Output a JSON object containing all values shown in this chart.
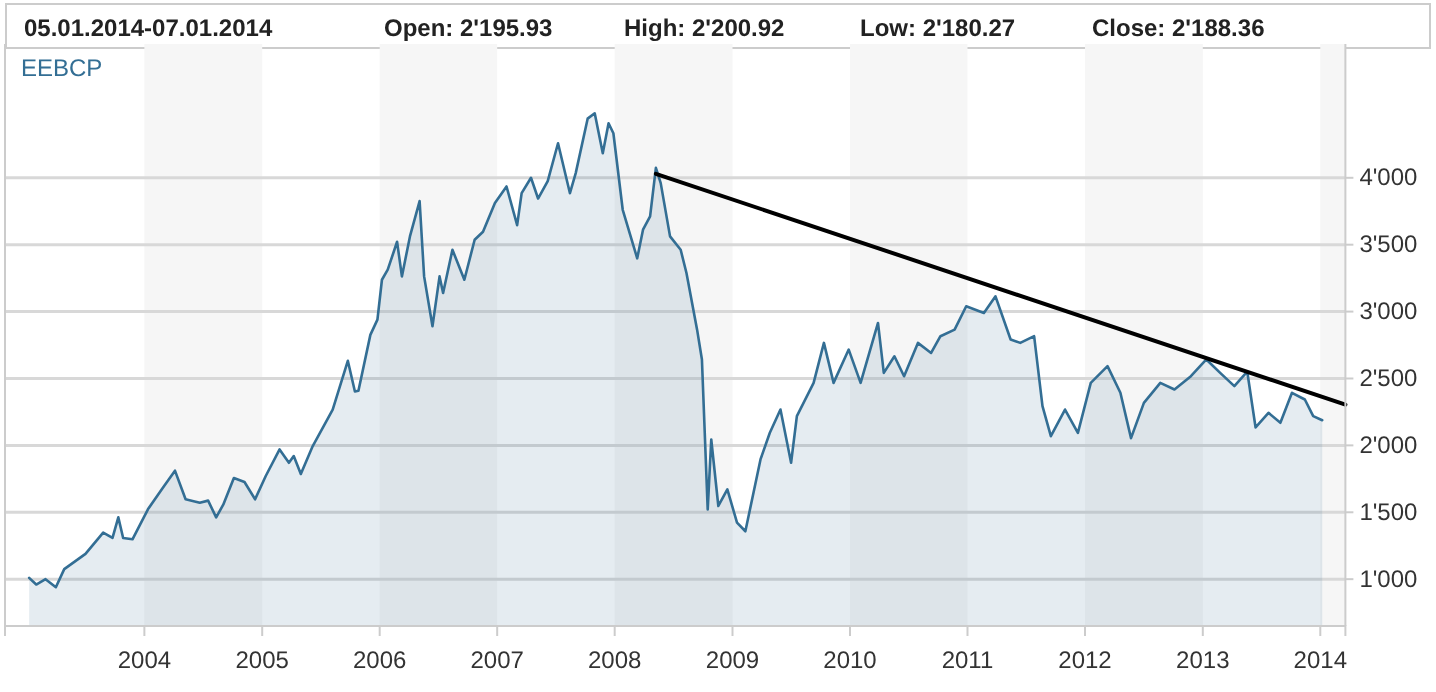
{
  "chart_data": {
    "type": "area",
    "annotations": [
      "05.01.2014-07.01.2014",
      "Open: 2'195.93",
      "High: 2'200.92",
      "Low: 2'180.27",
      "Close: 2'188.36"
    ],
    "xlim": [
      "2002-10-25",
      "2014-03-20"
    ],
    "xticks": [
      {
        "value": "2004-01-01",
        "label": "2004"
      },
      {
        "value": "2005-01-01",
        "label": "2005"
      },
      {
        "value": "2006-01-01",
        "label": "2006"
      },
      {
        "value": "2007-01-01",
        "label": "2007"
      },
      {
        "value": "2008-01-01",
        "label": "2008"
      },
      {
        "value": "2009-01-01",
        "label": "2009"
      },
      {
        "value": "2010-01-01",
        "label": "2010"
      },
      {
        "value": "2011-01-01",
        "label": "2011"
      },
      {
        "value": "2012-01-01",
        "label": "2012"
      },
      {
        "value": "2013-01-01",
        "label": "2013"
      },
      {
        "value": "2014-01-01",
        "label": "2014"
      }
    ],
    "ylim": [
      650,
      5000
    ],
    "yticks": [
      {
        "value": 1000,
        "label": "1'000"
      },
      {
        "value": 1500,
        "label": "1'500"
      },
      {
        "value": 2000,
        "label": "2'000"
      },
      {
        "value": 2500,
        "label": "2'500"
      },
      {
        "value": 3000,
        "label": "3'000"
      },
      {
        "value": 3500,
        "label": "3'500"
      },
      {
        "value": 4000,
        "label": "4'000"
      }
    ],
    "grid": "y",
    "legend": "top left",
    "bands": [
      {
        "axis": "x",
        "from": "2004-01-01",
        "to": "2005-01-01",
        "color": "#f6f6f6"
      },
      {
        "axis": "x",
        "from": "2006-01-01",
        "to": "2007-01-01",
        "color": "#f6f6f6"
      },
      {
        "axis": "x",
        "from": "2008-01-01",
        "to": "2009-01-01",
        "color": "#f6f6f6"
      },
      {
        "axis": "x",
        "from": "2010-01-01",
        "to": "2011-01-01",
        "color": "#f6f6f6"
      },
      {
        "axis": "x",
        "from": "2012-01-01",
        "to": "2013-01-01",
        "color": "#f6f6f6"
      },
      {
        "axis": "x",
        "from": "2014-01-01",
        "to": "2014-03-20",
        "color": "#f6f6f6"
      }
    ],
    "series": [
      {
        "name": "EEBCP",
        "color": "#336e94",
        "x": [
          "2003-01-08",
          "2003-01-30",
          "2003-02-28",
          "2003-04-01",
          "2003-04-27",
          "2003-07-02",
          "2003-08-26",
          "2003-09-24",
          "2003-10-12",
          "2003-10-27",
          "2003-11-25",
          "2004-01-12",
          "2004-02-28",
          "2004-04-05",
          "2004-05-08",
          "2004-06-21",
          "2004-07-17",
          "2004-08-11",
          "2004-09-02",
          "2004-10-05",
          "2004-11-07",
          "2004-12-10",
          "2005-01-12",
          "2005-02-24",
          "2005-03-25",
          "2005-04-09",
          "2005-05-01",
          "2005-06-07",
          "2005-08-08",
          "2005-09-24",
          "2005-10-16",
          "2005-10-27",
          "2005-12-03",
          "2005-12-25",
          "2006-01-08",
          "2006-01-26",
          "2006-02-24",
          "2006-03-11",
          "2006-04-05",
          "2006-05-05",
          "2006-05-19",
          "2006-06-14",
          "2006-07-06",
          "2006-07-17",
          "2006-08-15",
          "2006-09-21",
          "2006-10-23",
          "2006-11-18",
          "2006-12-25",
          "2007-01-30",
          "2007-03-04",
          "2007-03-18",
          "2007-04-16",
          "2007-05-08",
          "2007-06-07",
          "2007-07-09",
          "2007-08-15",
          "2007-09-02",
          "2007-10-09",
          "2007-10-31",
          "2007-11-25",
          "2007-12-13",
          "2007-12-28",
          "2008-01-26",
          "2008-03-11",
          "2008-03-29",
          "2008-04-20",
          "2008-05-08",
          "2008-05-23",
          "2008-06-21",
          "2008-07-24",
          "2008-08-11",
          "2008-09-13",
          "2008-09-28",
          "2008-10-16",
          "2008-10-27",
          "2008-11-18",
          "2008-12-16",
          "2009-01-15",
          "2009-02-10",
          "2009-03-29",
          "2009-04-27",
          "2009-05-30",
          "2009-07-02",
          "2009-07-20",
          "2009-09-10",
          "2009-10-12",
          "2009-11-11",
          "2009-12-28",
          "2010-02-03",
          "2010-03-29",
          "2010-04-16",
          "2010-05-19",
          "2010-06-18",
          "2010-07-31",
          "2010-09-10",
          "2010-10-09",
          "2010-11-22",
          "2010-12-28",
          "2011-02-21",
          "2011-03-29",
          "2011-05-15",
          "2011-06-14",
          "2011-07-27",
          "2011-08-22",
          "2011-09-17",
          "2011-10-31",
          "2011-12-10",
          "2012-01-19",
          "2012-03-11",
          "2012-04-20",
          "2012-05-23",
          "2012-07-02",
          "2012-08-22",
          "2012-10-05",
          "2012-11-25",
          "2013-01-12",
          "2013-02-24",
          "2013-04-09",
          "2013-05-19",
          "2013-06-14",
          "2013-07-24",
          "2013-08-30",
          "2013-10-05",
          "2013-11-14",
          "2013-12-10",
          "2014-01-07"
        ],
        "values": [
          1010,
          960,
          1000,
          940,
          1075,
          1189,
          1348,
          1308,
          1462,
          1308,
          1298,
          1522,
          1686,
          1811,
          1597,
          1572,
          1587,
          1462,
          1557,
          1756,
          1726,
          1597,
          1771,
          1970,
          1870,
          1920,
          1786,
          1995,
          2268,
          2632,
          2403,
          2408,
          2826,
          2940,
          3238,
          3313,
          3522,
          3263,
          3562,
          3826,
          3263,
          2890,
          3263,
          3139,
          3462,
          3238,
          3537,
          3597,
          3811,
          3935,
          3646,
          3885,
          4000,
          3845,
          3975,
          4258,
          3885,
          4035,
          4442,
          4482,
          4184,
          4408,
          4333,
          3761,
          3398,
          3612,
          3711,
          4074,
          3960,
          3562,
          3462,
          3288,
          2865,
          2642,
          1522,
          2044,
          1547,
          1671,
          1423,
          1358,
          1895,
          2094,
          2268,
          1870,
          2219,
          2467,
          2766,
          2467,
          2716,
          2467,
          2915,
          2542,
          2666,
          2517,
          2766,
          2691,
          2816,
          2865,
          3040,
          2990,
          3114,
          2791,
          2766,
          2816,
          2293,
          2069,
          2268,
          2094,
          2467,
          2592,
          2393,
          2054,
          2318,
          2467,
          2418,
          2517,
          2642,
          2542,
          2443,
          2552,
          2134,
          2243,
          2169,
          2393,
          2343,
          2219,
          2188
        ]
      },
      {
        "type": "line",
        "color": "#000000",
        "x": [
          "2008-05-08",
          "2014-03-20"
        ],
        "values": [
          4030,
          2304
        ]
      }
    ]
  }
}
